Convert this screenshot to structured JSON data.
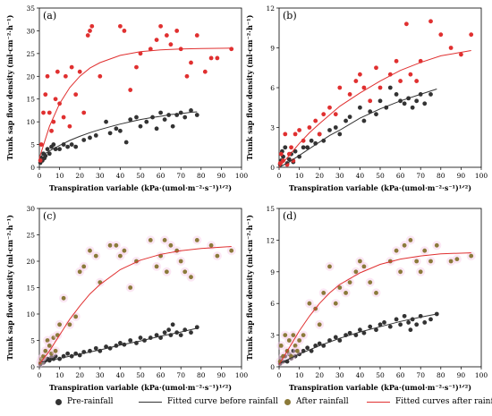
{
  "chart_data": [
    {
      "type": "scatter",
      "panel_label": "(a)",
      "ylabel": "Trunk sap flow density (ml·cm⁻²·h⁻¹)",
      "xlabel": "Transpiration variable (kPa·(umol·m⁻²·s⁻¹)¹ᐟ²)",
      "xlim": [
        0,
        100
      ],
      "ylim": [
        0,
        35
      ],
      "xticks": [
        "0",
        "10",
        "20",
        "30",
        "40",
        "50",
        "60",
        "70",
        "80",
        "90",
        "100"
      ],
      "yticks": [
        "0",
        "5",
        "10",
        "15",
        "20",
        "25",
        "30",
        "35"
      ],
      "series": [
        {
          "name": "Pre-rainfall",
          "kind": "points",
          "color": "#333333",
          "x": [
            0.5,
            1,
            1.5,
            2,
            2.5,
            3,
            4,
            5,
            6,
            7,
            8,
            10,
            12,
            14,
            16,
            18,
            22,
            25,
            28,
            33,
            35,
            38,
            40,
            43,
            45,
            48,
            50,
            53,
            56,
            58,
            60,
            62,
            64,
            66,
            68,
            70,
            72,
            75,
            78
          ],
          "y": [
            1,
            2,
            1.5,
            3,
            2,
            2.5,
            4,
            3,
            4.5,
            5,
            4,
            4,
            5,
            4.5,
            5,
            4.5,
            6,
            6.5,
            7,
            10,
            7.5,
            8.5,
            8,
            5.5,
            10.5,
            11,
            9,
            10,
            11,
            8.5,
            12,
            10.5,
            11.5,
            9,
            11.5,
            12,
            11,
            12.5,
            11.5
          ]
        },
        {
          "name": "After rainfall",
          "kind": "points",
          "color": "#e03030",
          "x": [
            0.5,
            1,
            2,
            3,
            4,
            5,
            6,
            7,
            8,
            9,
            10,
            12,
            13,
            15,
            16,
            18,
            20,
            22,
            24,
            25,
            26,
            30,
            40,
            42,
            45,
            48,
            50,
            55,
            58,
            60,
            63,
            65,
            68,
            70,
            73,
            75,
            78,
            82,
            85,
            88,
            95
          ],
          "y": [
            1.5,
            5,
            12,
            16,
            20,
            12,
            8,
            10,
            15,
            21,
            14,
            11,
            20,
            9,
            22,
            16,
            21,
            12,
            29,
            30,
            31,
            20,
            31,
            30,
            17,
            22,
            25,
            26,
            28,
            31,
            29,
            27,
            30,
            26,
            20,
            23,
            29,
            21,
            24,
            24,
            26
          ]
        },
        {
          "name": "Fitted curve before rainfall",
          "kind": "curve",
          "color": "#333333",
          "x": [
            0,
            5,
            10,
            15,
            20,
            25,
            30,
            35,
            40,
            45,
            50,
            55,
            60,
            65,
            70,
            75,
            78
          ],
          "y": [
            2.2,
            3.6,
            4.8,
            5.9,
            6.8,
            7.6,
            8.3,
            8.9,
            9.5,
            10.0,
            10.5,
            10.9,
            11.2,
            11.6,
            11.8,
            12.1,
            12.2
          ]
        },
        {
          "name": "Fitted curves after rainfall",
          "kind": "curve",
          "color": "#e03030",
          "x": [
            0,
            5,
            10,
            15,
            20,
            25,
            30,
            40,
            50,
            60,
            70,
            80,
            95
          ],
          "y": [
            2,
            9,
            14,
            17.5,
            20,
            21.8,
            23,
            24.6,
            25.4,
            25.8,
            26,
            26.1,
            26.2
          ]
        }
      ]
    },
    {
      "type": "scatter",
      "panel_label": "(b)",
      "ylabel": "Trunk sap flow density (ml·cm⁻²·h⁻¹)",
      "xlabel": "Transpiration variable (kPa·(umol·m⁻²·s⁻¹)¹ᐟ²)",
      "xlim": [
        0,
        100
      ],
      "ylim": [
        0,
        12
      ],
      "xticks": [
        "0",
        "10",
        "20",
        "30",
        "40",
        "50",
        "60",
        "70",
        "80",
        "90",
        "100"
      ],
      "yticks": [
        "0",
        "3",
        "6",
        "9",
        "12"
      ],
      "series": [
        {
          "name": "Pre-rainfall",
          "kind": "points",
          "color": "#333333",
          "x": [
            0.5,
            1,
            1.5,
            2,
            3,
            4,
            5,
            6,
            7,
            8,
            10,
            12,
            14,
            16,
            18,
            20,
            22,
            25,
            28,
            30,
            33,
            35,
            40,
            42,
            45,
            48,
            50,
            53,
            55,
            58,
            60,
            62,
            64,
            66,
            68,
            70,
            72,
            75
          ],
          "y": [
            0.2,
            0.5,
            1.2,
            0.8,
            1.5,
            0.3,
            0.6,
            1.0,
            0.4,
            1.2,
            0.8,
            1.5,
            1.5,
            2.0,
            1.8,
            2.5,
            2.0,
            2.8,
            3.0,
            2.5,
            3.5,
            3.8,
            4.5,
            3.5,
            4.2,
            4.0,
            5.0,
            4.5,
            6.0,
            5.5,
            5.0,
            4.8,
            5.2,
            4.5,
            5.0,
            5.5,
            4.8,
            5.5
          ]
        },
        {
          "name": "After rainfall",
          "kind": "points",
          "color": "#e03030",
          "x": [
            0.5,
            1,
            2,
            3,
            4,
            5,
            6,
            7,
            8,
            10,
            12,
            15,
            18,
            20,
            22,
            25,
            28,
            30,
            35,
            38,
            40,
            42,
            45,
            48,
            50,
            55,
            58,
            60,
            63,
            65,
            68,
            70,
            75,
            80,
            85,
            90,
            95
          ],
          "y": [
            0.3,
            1.0,
            0.5,
            2.5,
            0.2,
            1.0,
            1.5,
            0.5,
            2.5,
            2.8,
            2.0,
            3.0,
            3.5,
            2.5,
            4.0,
            4.5,
            4.0,
            6.0,
            5.5,
            6.5,
            7.0,
            6.0,
            5.0,
            7.5,
            6.0,
            7.0,
            8.0,
            6.5,
            10.8,
            7.0,
            6.5,
            8.0,
            11.0,
            10.0,
            9.0,
            8.5,
            10.0
          ]
        },
        {
          "name": "Fitted curve before rainfall",
          "kind": "curve",
          "color": "#333333",
          "x": [
            0,
            5,
            10,
            15,
            20,
            25,
            30,
            40,
            50,
            60,
            70,
            78
          ],
          "y": [
            0,
            0.4,
            0.9,
            1.4,
            1.9,
            2.4,
            2.8,
            3.7,
            4.4,
            5.0,
            5.5,
            5.9
          ]
        },
        {
          "name": "Fitted curves after rainfall",
          "kind": "curve",
          "color": "#e03030",
          "x": [
            0,
            5,
            10,
            15,
            20,
            30,
            40,
            50,
            60,
            70,
            80,
            95
          ],
          "y": [
            0,
            0.9,
            1.8,
            2.6,
            3.3,
            4.6,
            5.6,
            6.5,
            7.3,
            7.9,
            8.4,
            8.8
          ]
        }
      ]
    },
    {
      "type": "scatter",
      "panel_label": "(c)",
      "ylabel": "Trunk sap flow density (ml·cm⁻²·h⁻¹)",
      "xlabel": "Transpiration variable (kPa·(umol·m⁻²·s⁻¹)¹ᐟ²)",
      "xlim": [
        0,
        100
      ],
      "ylim": [
        0,
        30
      ],
      "xticks": [
        "0",
        "10",
        "20",
        "30",
        "40",
        "50",
        "60",
        "70",
        "80",
        "90",
        "100"
      ],
      "yticks": [
        "0",
        "5",
        "10",
        "15",
        "20",
        "25",
        "30"
      ],
      "series": [
        {
          "name": "Pre-rainfall",
          "kind": "points",
          "color": "#333333",
          "x": [
            0.5,
            1,
            2,
            3,
            4,
            5,
            6,
            7,
            8,
            10,
            12,
            14,
            16,
            18,
            20,
            22,
            25,
            28,
            30,
            33,
            35,
            38,
            40,
            42,
            45,
            48,
            50,
            52,
            55,
            58,
            60,
            62,
            64,
            65,
            66,
            68,
            70,
            72,
            75,
            78
          ],
          "y": [
            0.5,
            1,
            0.8,
            1.2,
            1.5,
            1.2,
            1.8,
            1.5,
            2,
            1.5,
            2,
            2.5,
            2,
            2.5,
            2.2,
            2.8,
            3,
            3.5,
            3,
            3.8,
            3.5,
            4,
            4.5,
            4.2,
            5,
            4.5,
            5.5,
            5,
            5.5,
            6,
            5.5,
            6.5,
            7,
            6,
            8,
            6.5,
            6,
            7,
            6.5,
            7.5
          ]
        },
        {
          "name": "After rainfall",
          "kind": "points",
          "color": "#8b7a3a",
          "x": [
            0.5,
            1,
            2,
            3,
            4,
            5,
            6,
            7,
            8,
            9,
            10,
            12,
            15,
            18,
            20,
            22,
            25,
            28,
            30,
            35,
            38,
            40,
            42,
            45,
            48,
            55,
            58,
            60,
            62,
            63,
            65,
            68,
            70,
            72,
            75,
            78,
            85,
            88,
            95
          ],
          "y": [
            0.8,
            1.5,
            2,
            3,
            5,
            4,
            2.5,
            5.5,
            3,
            6,
            8,
            13,
            8,
            9.5,
            18,
            19,
            22,
            21,
            16,
            23,
            23,
            21,
            22,
            15,
            20,
            24,
            19,
            21,
            24,
            18,
            23,
            22,
            20,
            18,
            17,
            24,
            23,
            21,
            22
          ]
        },
        {
          "name": "Fitted curve before rainfall",
          "kind": "curve",
          "color": "#333333",
          "x": [
            0,
            10,
            20,
            30,
            40,
            50,
            60,
            70,
            78
          ],
          "y": [
            0.8,
            1.6,
            2.4,
            3.2,
            4.1,
            4.9,
            5.8,
            6.6,
            7.3
          ]
        },
        {
          "name": "Fitted curves after rainfall",
          "kind": "curve",
          "color": "#e03030",
          "x": [
            0,
            5,
            10,
            15,
            20,
            25,
            30,
            40,
            50,
            60,
            70,
            80,
            95
          ],
          "y": [
            0.5,
            3,
            6,
            9,
            11.5,
            13.8,
            15.6,
            18.4,
            20.2,
            21.3,
            22,
            22.4,
            22.8
          ]
        }
      ]
    },
    {
      "type": "scatter",
      "panel_label": "(d)",
      "ylabel": "Trunk sap flow density (ml·cm⁻²·h⁻¹)",
      "xlabel": "Transpiration variable (kPa·(umol·m⁻²·s⁻¹)¹ᐟ²)",
      "xlim": [
        0,
        100
      ],
      "ylim": [
        0,
        15
      ],
      "xticks": [
        "0",
        "10",
        "20",
        "30",
        "40",
        "50",
        "60",
        "70",
        "80",
        "90",
        "100"
      ],
      "yticks": [
        "0",
        "3",
        "6",
        "9",
        "12",
        "15"
      ],
      "series": [
        {
          "name": "Pre-rainfall",
          "kind": "points",
          "color": "#333333",
          "x": [
            0.5,
            1,
            2,
            3,
            4,
            5,
            6,
            7,
            8,
            10,
            12,
            14,
            16,
            18,
            20,
            22,
            25,
            28,
            30,
            33,
            35,
            38,
            40,
            42,
            45,
            48,
            50,
            52,
            55,
            58,
            60,
            62,
            64,
            65,
            66,
            68,
            70,
            72,
            75,
            78
          ],
          "y": [
            0.3,
            0.8,
            0.5,
            1,
            0.5,
            1.2,
            0.8,
            1.5,
            1,
            1.2,
            1.5,
            1.8,
            1.5,
            2,
            2.2,
            2,
            2.5,
            2.8,
            2.5,
            3,
            3.2,
            3,
            3.5,
            3.2,
            3.8,
            3.5,
            4,
            4.2,
            3.8,
            4.5,
            4,
            4.8,
            4.2,
            3.5,
            4.5,
            4,
            4.8,
            4.2,
            4.5,
            5
          ]
        },
        {
          "name": "After rainfall",
          "kind": "points",
          "color": "#8b7a3a",
          "x": [
            0.5,
            1,
            2,
            3,
            4,
            5,
            6,
            7,
            8,
            9,
            10,
            12,
            15,
            18,
            20,
            22,
            25,
            28,
            30,
            33,
            35,
            38,
            40,
            42,
            45,
            48,
            55,
            58,
            60,
            62,
            65,
            68,
            70,
            72,
            75,
            78,
            85,
            88,
            95
          ],
          "y": [
            0.5,
            2,
            1,
            3,
            1.5,
            2.5,
            1,
            3,
            2,
            1.5,
            2.5,
            3,
            6,
            5.5,
            4,
            7,
            9.5,
            6,
            7.5,
            7,
            8,
            9,
            10,
            9.5,
            8,
            7,
            10,
            11,
            9,
            11.5,
            12,
            10,
            9,
            11,
            10,
            11.5,
            10,
            10.2,
            10.5
          ]
        },
        {
          "name": "Fitted curve before rainfall",
          "kind": "curve",
          "color": "#333333",
          "x": [
            0,
            10,
            20,
            30,
            40,
            50,
            60,
            70,
            78
          ],
          "y": [
            0.3,
            1.2,
            2,
            2.7,
            3.3,
            3.8,
            4.3,
            4.7,
            5
          ]
        },
        {
          "name": "Fitted curves after rainfall",
          "kind": "curve",
          "color": "#e03030",
          "x": [
            0,
            5,
            10,
            15,
            20,
            25,
            30,
            40,
            50,
            60,
            70,
            80,
            95
          ],
          "y": [
            0.2,
            1.8,
            3.4,
            4.8,
            6,
            7,
            7.8,
            8.9,
            9.7,
            10.2,
            10.5,
            10.7,
            10.8
          ]
        }
      ]
    }
  ],
  "legend": {
    "pre_rainfall": "Pre-rainfall",
    "fitted_before": "Fitted curve before rainfall",
    "after_rainfall": "After rainfall",
    "fitted_after": "Fitted curves after rainfall"
  },
  "colors": {
    "pre_rainfall": "#333333",
    "after_rainfall_legend": "#8b7a3a",
    "fitted_before": "#333333",
    "fitted_after": "#e03030"
  }
}
